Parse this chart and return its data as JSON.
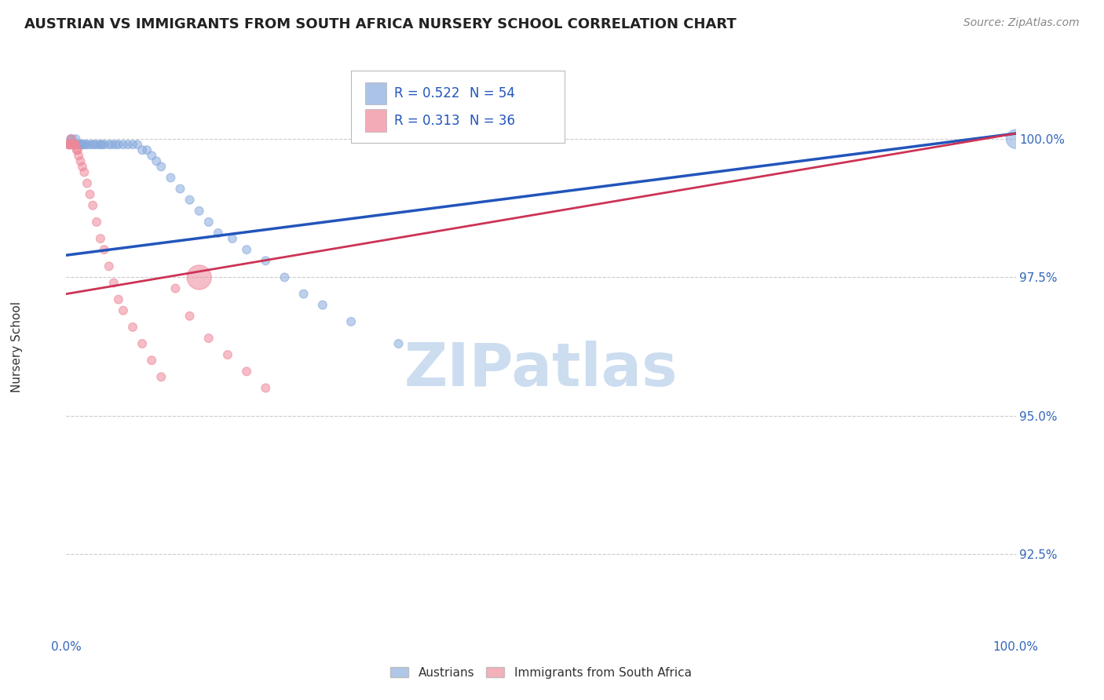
{
  "title": "AUSTRIAN VS IMMIGRANTS FROM SOUTH AFRICA NURSERY SCHOOL CORRELATION CHART",
  "source": "Source: ZipAtlas.com",
  "ylabel": "Nursery School",
  "watermark": "ZIPatlas",
  "ytick_labels": [
    "100.0%",
    "97.5%",
    "95.0%",
    "92.5%"
  ],
  "ytick_values": [
    1.0,
    0.975,
    0.95,
    0.925
  ],
  "xlim": [
    0.0,
    1.0
  ],
  "ylim": [
    0.91,
    1.015
  ],
  "blue_R": 0.522,
  "blue_N": 54,
  "pink_R": 0.313,
  "pink_N": 36,
  "blue_color": "#88AADD",
  "pink_color": "#EE8899",
  "blue_line_color": "#2255BB",
  "pink_line_color": "#CC3355",
  "legend_label_blue": "Austrians",
  "legend_label_pink": "Immigrants from South Africa",
  "blue_scatter_x": [
    0.003,
    0.004,
    0.005,
    0.006,
    0.007,
    0.008,
    0.009,
    0.01,
    0.01,
    0.011,
    0.012,
    0.013,
    0.014,
    0.015,
    0.016,
    0.017,
    0.018,
    0.02,
    0.022,
    0.025,
    0.028,
    0.03,
    0.033,
    0.036,
    0.038,
    0.04,
    0.045,
    0.048,
    0.052,
    0.055,
    0.06,
    0.065,
    0.07,
    0.075,
    0.08,
    0.085,
    0.09,
    0.095,
    0.1,
    0.11,
    0.12,
    0.13,
    0.14,
    0.15,
    0.16,
    0.175,
    0.19,
    0.21,
    0.23,
    0.25,
    0.27,
    0.3,
    0.35,
    1.0
  ],
  "blue_scatter_y": [
    0.999,
    0.999,
    1.0,
    1.0,
    0.999,
    0.999,
    0.999,
    1.0,
    0.999,
    0.999,
    0.999,
    0.999,
    0.999,
    0.999,
    0.999,
    0.999,
    0.999,
    0.999,
    0.999,
    0.999,
    0.999,
    0.999,
    0.999,
    0.999,
    0.999,
    0.999,
    0.999,
    0.999,
    0.999,
    0.999,
    0.999,
    0.999,
    0.999,
    0.999,
    0.998,
    0.998,
    0.997,
    0.996,
    0.995,
    0.993,
    0.991,
    0.989,
    0.987,
    0.985,
    0.983,
    0.982,
    0.98,
    0.978,
    0.975,
    0.972,
    0.97,
    0.967,
    0.963,
    1.0
  ],
  "blue_scatter_sizes": [
    60,
    60,
    60,
    60,
    60,
    60,
    60,
    60,
    60,
    60,
    60,
    60,
    60,
    60,
    60,
    60,
    60,
    60,
    60,
    60,
    60,
    60,
    60,
    60,
    60,
    60,
    60,
    60,
    60,
    60,
    60,
    60,
    60,
    60,
    60,
    60,
    60,
    60,
    60,
    60,
    60,
    60,
    60,
    60,
    60,
    60,
    60,
    60,
    60,
    60,
    60,
    60,
    60,
    300
  ],
  "pink_scatter_x": [
    0.002,
    0.003,
    0.004,
    0.005,
    0.006,
    0.007,
    0.008,
    0.009,
    0.01,
    0.011,
    0.012,
    0.013,
    0.015,
    0.017,
    0.019,
    0.022,
    0.025,
    0.028,
    0.032,
    0.036,
    0.04,
    0.045,
    0.05,
    0.055,
    0.06,
    0.07,
    0.08,
    0.09,
    0.1,
    0.115,
    0.13,
    0.15,
    0.17,
    0.19,
    0.21,
    0.14
  ],
  "pink_scatter_y": [
    0.999,
    0.999,
    0.999,
    1.0,
    0.999,
    0.999,
    0.999,
    0.999,
    0.999,
    0.998,
    0.998,
    0.997,
    0.996,
    0.995,
    0.994,
    0.992,
    0.99,
    0.988,
    0.985,
    0.982,
    0.98,
    0.977,
    0.974,
    0.971,
    0.969,
    0.966,
    0.963,
    0.96,
    0.957,
    0.973,
    0.968,
    0.964,
    0.961,
    0.958,
    0.955,
    0.975
  ],
  "pink_scatter_sizes": [
    60,
    60,
    60,
    60,
    60,
    60,
    60,
    60,
    60,
    60,
    60,
    60,
    60,
    60,
    60,
    60,
    60,
    60,
    60,
    60,
    60,
    60,
    60,
    60,
    60,
    60,
    60,
    60,
    60,
    60,
    60,
    60,
    60,
    60,
    60,
    500
  ],
  "blue_line_y_start": 0.979,
  "blue_line_y_end": 1.001,
  "pink_line_y_start": 0.972,
  "pink_line_y_end": 1.001,
  "grid_color": "#CCCCCC",
  "background_color": "#FFFFFF",
  "title_fontsize": 13,
  "source_fontsize": 10,
  "watermark_fontsize": 55
}
